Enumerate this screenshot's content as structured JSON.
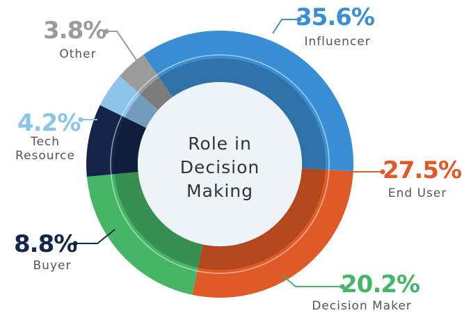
{
  "chart_data": {
    "type": "pie",
    "title": "Role in Decision Making",
    "categories": [
      "Influencer",
      "End User",
      "Decision Maker",
      "Buyer",
      "Tech Resource",
      "Other"
    ],
    "values": [
      35.6,
      27.5,
      20.2,
      8.8,
      4.2,
      3.8
    ],
    "value_labels": [
      "35.6%",
      "27.5%",
      "20.2%",
      "8.8%",
      "4.2%",
      "3.8%"
    ],
    "colors": [
      "#3a8fd4",
      "#e05a27",
      "#45b566",
      "#15254a",
      "#8ec3ea",
      "#9b9b9b"
    ]
  }
}
